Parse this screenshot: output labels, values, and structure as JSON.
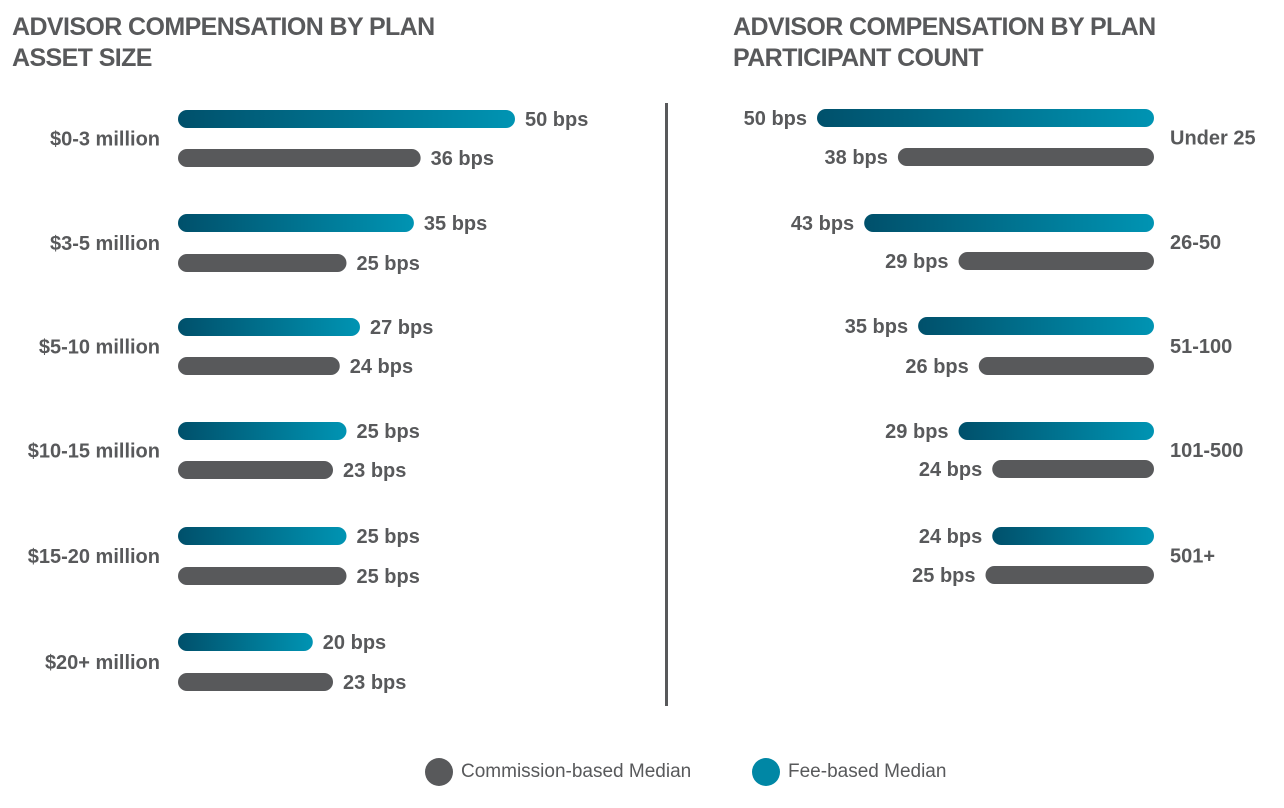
{
  "colors": {
    "commission": "#58595b",
    "fee_dark": "#00506b",
    "fee_light": "#0094b3",
    "text": "#58595b",
    "divider": "#58595b"
  },
  "titles": {
    "left": "ADVISOR COMPENSATION BY PLAN ASSET SIZE",
    "right": "ADVISOR COMPENSATION BY PLAN PARTICIPANT COUNT"
  },
  "legend": {
    "commission": "Commission-based Median",
    "fee": "Fee-based Median"
  },
  "chart_data": [
    {
      "type": "bar",
      "orientation": "horizontal",
      "title": "ADVISOR COMPENSATION BY PLAN ASSET SIZE",
      "categories": [
        "$0-3 million",
        "$3-5 million",
        "$5-10 million",
        "$10-15 million",
        "$15-20 million",
        "$20+ million"
      ],
      "unit": "bps",
      "series": [
        {
          "name": "Fee-based Median",
          "values": [
            50,
            35,
            27,
            25,
            25,
            20
          ]
        },
        {
          "name": "Commission-based Median",
          "values": [
            36,
            25,
            24,
            23,
            25,
            23
          ]
        }
      ],
      "value_labels": {
        "fee": [
          "50 bps",
          "35 bps",
          "27 bps",
          "25 bps",
          "25 bps",
          "20 bps"
        ],
        "commission": [
          "36 bps",
          "25 bps",
          "24 bps",
          "23 bps",
          "25 bps",
          "23 bps"
        ]
      },
      "direction": "left-to-right"
    },
    {
      "type": "bar",
      "orientation": "horizontal",
      "title": "ADVISOR COMPENSATION BY PLAN PARTICIPANT COUNT",
      "categories": [
        "Under 25",
        "26-50",
        "51-100",
        "101-500",
        "501+"
      ],
      "unit": "bps",
      "series": [
        {
          "name": "Fee-based Median",
          "values": [
            50,
            43,
            35,
            29,
            24
          ]
        },
        {
          "name": "Commission-based Median",
          "values": [
            38,
            29,
            26,
            24,
            25
          ]
        }
      ],
      "value_labels": {
        "fee": [
          "50 bps",
          "43 bps",
          "35 bps",
          "29 bps",
          "24 bps"
        ],
        "commission": [
          "38 bps",
          "29 bps",
          "26 bps",
          "24 bps",
          "25 bps"
        ]
      },
      "direction": "right-to-left"
    }
  ]
}
